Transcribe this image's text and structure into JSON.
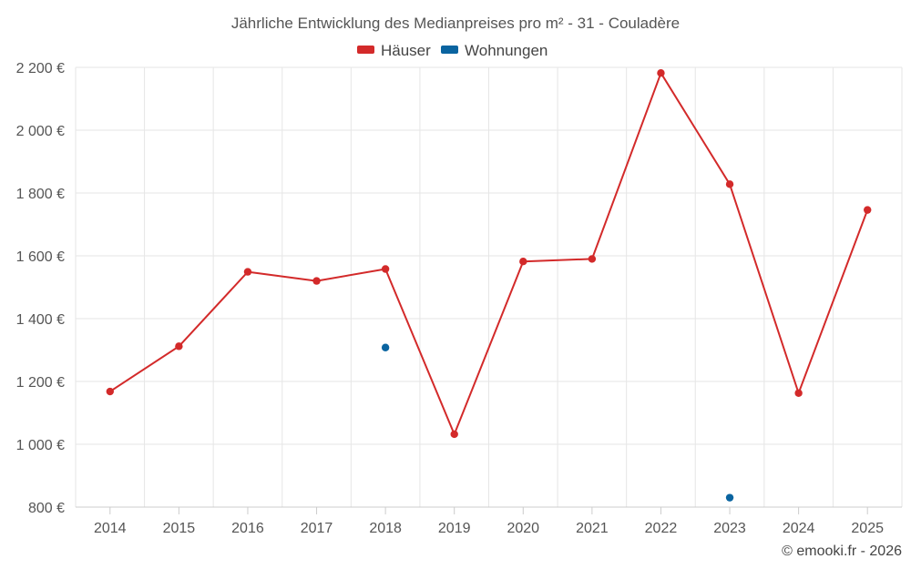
{
  "chart_data": {
    "type": "line",
    "title": "Jährliche Entwicklung des Medianpreises pro m² - 31 - Couladère",
    "categories": [
      "2014",
      "2015",
      "2016",
      "2017",
      "2018",
      "2019",
      "2020",
      "2021",
      "2022",
      "2023",
      "2024",
      "2025"
    ],
    "series": [
      {
        "name": "Häuser",
        "color": "#d32a2a",
        "values": [
          1168,
          1312,
          1549,
          1520,
          1558,
          1032,
          1582,
          1590,
          2182,
          1828,
          1163,
          1746
        ]
      },
      {
        "name": "Wohnungen",
        "color": "#0a64a0",
        "values": [
          null,
          null,
          null,
          null,
          1308,
          null,
          null,
          null,
          null,
          830,
          null,
          null
        ]
      }
    ],
    "ylim": [
      800,
      2200
    ],
    "yticks": [
      2200,
      2000,
      1800,
      1600,
      1400,
      1200,
      1000,
      800
    ],
    "ytick_labels": [
      "2 200 €",
      "2 000 €",
      "1 800 €",
      "1 600 €",
      "1 400 €",
      "1 200 €",
      "1 000 €",
      "800 €"
    ],
    "grid": true,
    "legend_position": "top-center",
    "xlabel": "",
    "ylabel": ""
  },
  "credit": "© emooki.fr - 2026"
}
